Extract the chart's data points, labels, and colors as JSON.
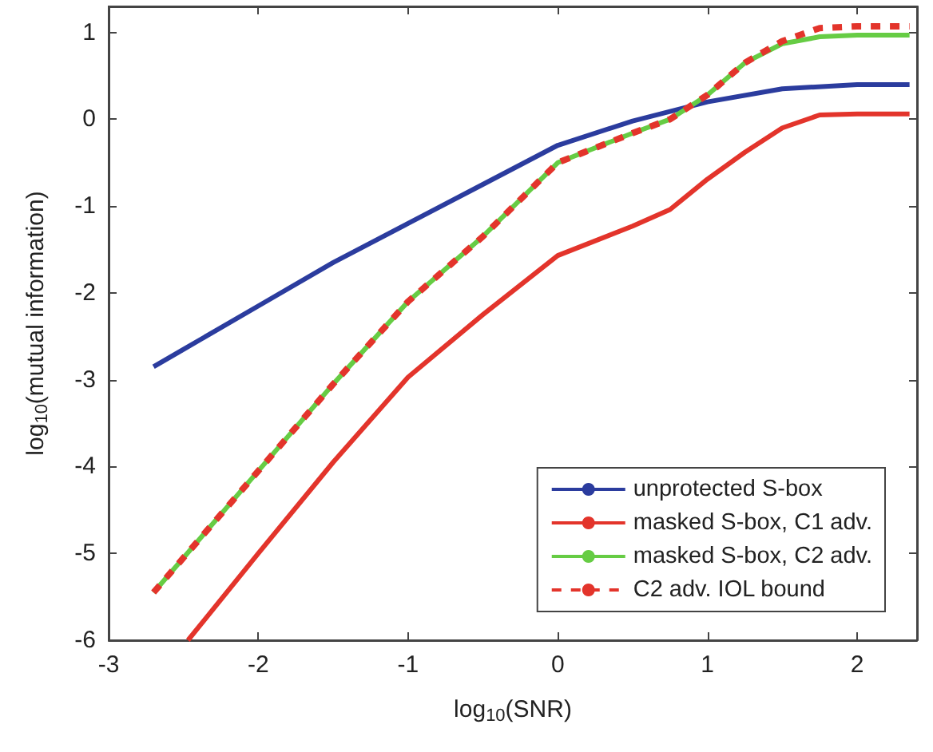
{
  "chart_data": {
    "type": "line",
    "xlabel": "log$_{10}$(SNR)",
    "ylabel": "log$_{10}$(mutual information)",
    "xlim": [
      -3,
      2.4
    ],
    "xticks": [
      -3,
      -2,
      -1,
      0,
      1,
      2
    ],
    "ylim": [
      -6,
      1.3
    ],
    "yticks": [
      -6,
      -5,
      -4,
      -3,
      -2,
      -1,
      0,
      1
    ],
    "grid": false,
    "legend": "bottom right",
    "marker": "none",
    "series": [
      {
        "name": "unprotected S-box",
        "color": "#2b3c9e",
        "line_style": "solid",
        "x": [
          -2.7,
          -2.5,
          -2,
          -1.5,
          -1,
          -0.5,
          0,
          0.5,
          1,
          1.5,
          2,
          2.35
        ],
        "values": [
          -2.85,
          -2.65,
          -2.15,
          -1.65,
          -1.2,
          -0.75,
          -0.3,
          -0.02,
          0.2,
          0.35,
          0.4,
          0.4
        ]
      },
      {
        "name": "masked S-box, C1 adv.",
        "color": "#e3342b",
        "line_style": "solid",
        "x": [
          -2.47,
          -2,
          -1.5,
          -1,
          -0.5,
          0,
          0.5,
          0.75,
          1,
          1.25,
          1.5,
          1.75,
          2,
          2.35
        ],
        "values": [
          -6,
          -5.0,
          -3.95,
          -2.97,
          -2.25,
          -1.57,
          -1.23,
          -1.04,
          -0.69,
          -0.38,
          -0.1,
          0.05,
          0.06,
          0.06
        ]
      },
      {
        "name": "masked S-box, C2 adv.",
        "color": "#66cc44",
        "line_style": "solid",
        "x": [
          -2.7,
          -2.5,
          -2,
          -1.5,
          -1,
          -0.5,
          0,
          0.5,
          0.75,
          1,
          1.25,
          1.5,
          1.75,
          2,
          2.35
        ],
        "values": [
          -5.45,
          -5.05,
          -4.05,
          -3.05,
          -2.1,
          -1.35,
          -0.5,
          -0.16,
          0,
          0.28,
          0.65,
          0.87,
          0.95,
          0.97,
          0.97
        ]
      },
      {
        "name": "C2 adv. IOL bound",
        "color": "#e3342b",
        "line_style": "dashed",
        "x": [
          -2.7,
          -2.5,
          -2,
          -1.5,
          -1,
          -0.5,
          0,
          0.5,
          0.75,
          1,
          1.25,
          1.5,
          1.75,
          2,
          2.35
        ],
        "values": [
          -5.45,
          -5.05,
          -4.05,
          -3.05,
          -2.1,
          -1.35,
          -0.5,
          -0.16,
          0,
          0.28,
          0.65,
          0.9,
          1.05,
          1.07,
          1.07
        ]
      }
    ]
  }
}
